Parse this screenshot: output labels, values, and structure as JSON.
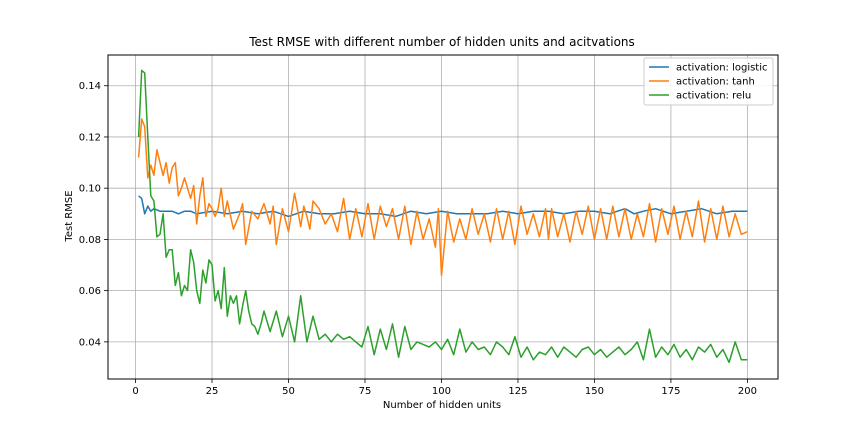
{
  "chart_data": {
    "type": "line",
    "title": "Test RMSE with different number of hidden units and acitvations",
    "xlabel": "Number of hidden units",
    "ylabel": "Test RMSE",
    "xlim": [
      -9,
      210
    ],
    "ylim": [
      0.0255,
      0.152
    ],
    "xticks": [
      0,
      25,
      50,
      75,
      100,
      125,
      150,
      175,
      200
    ],
    "xtick_labels": [
      "0",
      "25",
      "50",
      "75",
      "100",
      "125",
      "150",
      "175",
      "200"
    ],
    "yticks": [
      0.04,
      0.06,
      0.08,
      0.1,
      0.12,
      0.14
    ],
    "ytick_labels": [
      "0.04",
      "0.06",
      "0.08",
      "0.10",
      "0.12",
      "0.14"
    ],
    "grid": true,
    "legend_position": "top-right",
    "series": [
      {
        "name": "activation: logistic",
        "color": "#1f77b4",
        "x": [
          1,
          2,
          3,
          4,
          5,
          6,
          8,
          10,
          12,
          14,
          16,
          18,
          20,
          25,
          30,
          35,
          40,
          45,
          50,
          55,
          60,
          65,
          70,
          75,
          80,
          85,
          90,
          95,
          100,
          105,
          110,
          115,
          120,
          125,
          130,
          135,
          140,
          145,
          150,
          155,
          160,
          163,
          166,
          170,
          175,
          180,
          185,
          190,
          195,
          200
        ],
        "y": [
          0.097,
          0.096,
          0.09,
          0.093,
          0.091,
          0.092,
          0.091,
          0.091,
          0.091,
          0.09,
          0.091,
          0.091,
          0.09,
          0.091,
          0.09,
          0.091,
          0.09,
          0.091,
          0.089,
          0.091,
          0.09,
          0.09,
          0.091,
          0.09,
          0.09,
          0.089,
          0.091,
          0.09,
          0.091,
          0.09,
          0.09,
          0.09,
          0.091,
          0.09,
          0.091,
          0.091,
          0.09,
          0.091,
          0.091,
          0.09,
          0.092,
          0.09,
          0.091,
          0.092,
          0.09,
          0.091,
          0.092,
          0.09,
          0.091,
          0.091
        ]
      },
      {
        "name": "activation: tanh",
        "color": "#ff7f0e",
        "x": [
          1,
          2,
          3,
          4,
          5,
          6,
          7,
          8,
          9,
          10,
          11,
          12,
          13,
          14,
          15,
          16,
          17,
          18,
          19,
          20,
          21,
          22,
          23,
          24,
          25,
          26,
          27,
          28,
          29,
          30,
          32,
          34,
          35,
          36,
          38,
          40,
          42,
          44,
          45,
          46,
          48,
          50,
          52,
          54,
          55,
          56,
          57,
          58,
          60,
          62,
          64,
          66,
          68,
          70,
          72,
          74,
          76,
          78,
          80,
          82,
          84,
          86,
          88,
          90,
          92,
          94,
          96,
          98,
          99,
          100,
          102,
          104,
          106,
          108,
          110,
          112,
          114,
          116,
          118,
          120,
          122,
          124,
          126,
          128,
          130,
          132,
          134,
          135,
          136,
          138,
          140,
          142,
          144,
          146,
          148,
          150,
          152,
          154,
          156,
          158,
          160,
          162,
          164,
          166,
          168,
          170,
          172,
          174,
          176,
          178,
          180,
          182,
          184,
          186,
          188,
          190,
          192,
          194,
          196,
          198,
          200
        ],
        "y": [
          0.112,
          0.127,
          0.124,
          0.104,
          0.109,
          0.105,
          0.115,
          0.11,
          0.105,
          0.11,
          0.102,
          0.108,
          0.11,
          0.097,
          0.1,
          0.104,
          0.1,
          0.096,
          0.101,
          0.086,
          0.097,
          0.104,
          0.089,
          0.094,
          0.092,
          0.089,
          0.092,
          0.1,
          0.089,
          0.095,
          0.084,
          0.09,
          0.094,
          0.078,
          0.091,
          0.088,
          0.094,
          0.086,
          0.093,
          0.078,
          0.092,
          0.083,
          0.098,
          0.085,
          0.093,
          0.089,
          0.084,
          0.095,
          0.092,
          0.086,
          0.09,
          0.083,
          0.096,
          0.08,
          0.092,
          0.081,
          0.094,
          0.08,
          0.093,
          0.085,
          0.092,
          0.08,
          0.093,
          0.078,
          0.091,
          0.08,
          0.088,
          0.077,
          0.092,
          0.066,
          0.091,
          0.079,
          0.088,
          0.08,
          0.092,
          0.082,
          0.09,
          0.079,
          0.092,
          0.08,
          0.091,
          0.078,
          0.093,
          0.082,
          0.09,
          0.081,
          0.092,
          0.08,
          0.092,
          0.081,
          0.09,
          0.079,
          0.091,
          0.082,
          0.093,
          0.08,
          0.092,
          0.08,
          0.093,
          0.081,
          0.092,
          0.08,
          0.09,
          0.081,
          0.094,
          0.079,
          0.092,
          0.082,
          0.093,
          0.08,
          0.091,
          0.081,
          0.095,
          0.079,
          0.092,
          0.08,
          0.093,
          0.081,
          0.09,
          0.082,
          0.083
        ]
      },
      {
        "name": "activation: relu",
        "color": "#2ca02c",
        "x": [
          1,
          2,
          3,
          4,
          5,
          6,
          7,
          8,
          9,
          10,
          11,
          12,
          13,
          14,
          15,
          16,
          17,
          18,
          19,
          20,
          21,
          22,
          23,
          24,
          25,
          26,
          27,
          28,
          29,
          30,
          31,
          32,
          33,
          34,
          35,
          36,
          37,
          38,
          39,
          40,
          41,
          42,
          44,
          46,
          48,
          50,
          52,
          54,
          56,
          58,
          60,
          62,
          64,
          66,
          68,
          70,
          72,
          74,
          76,
          78,
          80,
          82,
          84,
          86,
          88,
          90,
          92,
          94,
          96,
          98,
          100,
          102,
          104,
          106,
          108,
          110,
          112,
          114,
          116,
          118,
          120,
          122,
          124,
          126,
          128,
          130,
          132,
          134,
          136,
          138,
          140,
          142,
          144,
          146,
          148,
          150,
          152,
          154,
          156,
          158,
          160,
          162,
          164,
          166,
          168,
          170,
          172,
          174,
          176,
          178,
          180,
          182,
          184,
          186,
          188,
          190,
          192,
          194,
          196,
          198,
          200
        ],
        "y": [
          0.12,
          0.146,
          0.145,
          0.12,
          0.097,
          0.095,
          0.081,
          0.082,
          0.09,
          0.073,
          0.076,
          0.076,
          0.062,
          0.067,
          0.058,
          0.062,
          0.06,
          0.076,
          0.071,
          0.06,
          0.055,
          0.068,
          0.063,
          0.072,
          0.07,
          0.056,
          0.06,
          0.053,
          0.069,
          0.05,
          0.058,
          0.055,
          0.058,
          0.047,
          0.054,
          0.06,
          0.052,
          0.047,
          0.046,
          0.043,
          0.047,
          0.052,
          0.044,
          0.052,
          0.042,
          0.05,
          0.04,
          0.058,
          0.04,
          0.05,
          0.041,
          0.043,
          0.04,
          0.043,
          0.041,
          0.042,
          0.04,
          0.038,
          0.046,
          0.035,
          0.045,
          0.037,
          0.047,
          0.034,
          0.046,
          0.037,
          0.04,
          0.039,
          0.038,
          0.04,
          0.037,
          0.041,
          0.035,
          0.045,
          0.036,
          0.04,
          0.037,
          0.038,
          0.035,
          0.04,
          0.038,
          0.035,
          0.042,
          0.034,
          0.038,
          0.033,
          0.036,
          0.035,
          0.038,
          0.034,
          0.038,
          0.036,
          0.034,
          0.037,
          0.038,
          0.035,
          0.037,
          0.034,
          0.036,
          0.038,
          0.035,
          0.037,
          0.04,
          0.033,
          0.045,
          0.034,
          0.038,
          0.035,
          0.039,
          0.034,
          0.037,
          0.033,
          0.038,
          0.036,
          0.039,
          0.034,
          0.037,
          0.032,
          0.04,
          0.033,
          0.033
        ]
      }
    ]
  }
}
